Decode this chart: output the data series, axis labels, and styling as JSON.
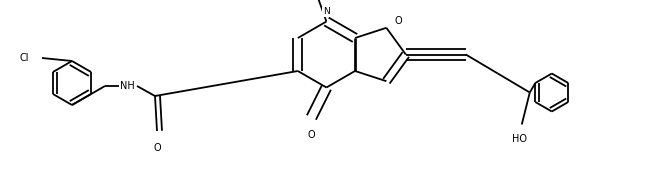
{
  "figsize": [
    6.52,
    1.71
  ],
  "dpi": 100,
  "bg_color": "white",
  "line_color": "black",
  "line_width": 1.3,
  "font_size": 7.0,
  "xlim": [
    0,
    6.52
  ],
  "ylim": [
    0,
    1.71
  ]
}
